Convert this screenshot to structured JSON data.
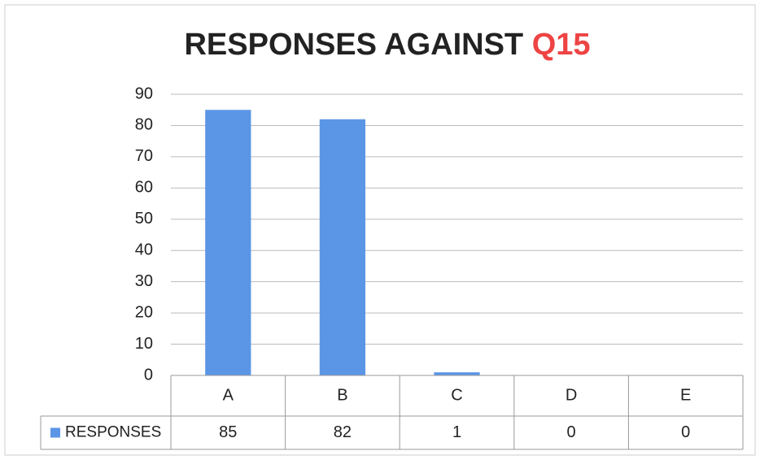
{
  "chart_data": {
    "type": "bar",
    "title": "RESPONSES AGAINST",
    "title_highlight": "Q15",
    "categories": [
      "A",
      "B",
      "C",
      "D",
      "E"
    ],
    "series": [
      {
        "name": "RESPONSES",
        "color": "#5b96e6",
        "values": [
          85,
          82,
          1,
          0,
          0
        ]
      }
    ],
    "ylim": [
      0,
      90
    ],
    "yticks": [
      0,
      10,
      20,
      30,
      40,
      50,
      60,
      70,
      80,
      90
    ],
    "grid": true,
    "data_table": true
  }
}
